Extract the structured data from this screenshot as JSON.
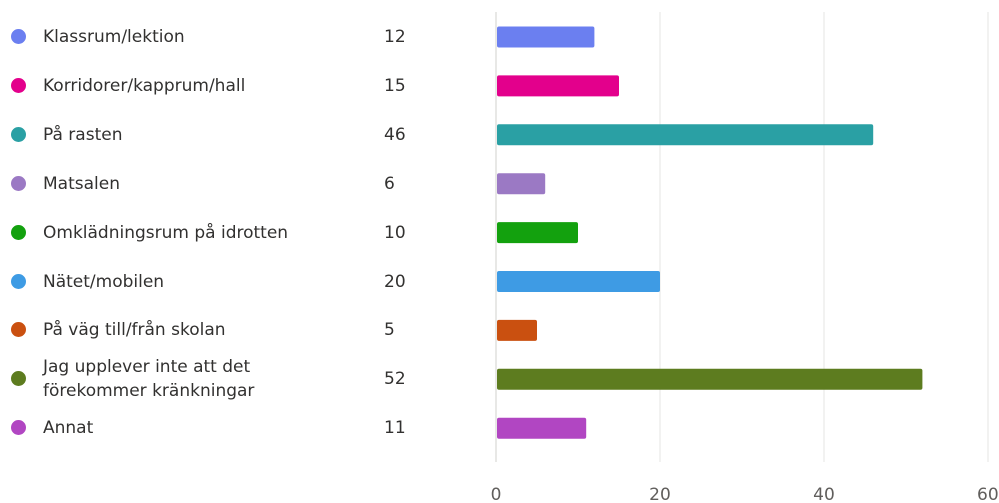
{
  "chart_data": {
    "type": "bar",
    "orientation": "horizontal",
    "categories": [
      "Klassrum/lektion",
      "Korridorer/kapprum/hall",
      "På rasten",
      "Matsalen",
      "Omklädningsrum på idrotten",
      "Nätet/mobilen",
      "På väg till/från skolan",
      "Jag upplever inte att det förekommer kränkningar",
      "Annat"
    ],
    "values": [
      12,
      15,
      46,
      6,
      10,
      20,
      5,
      52,
      11
    ],
    "colors": [
      "#6b7ff0",
      "#e3008c",
      "#2aa0a4",
      "#9b79c4",
      "#13a10e",
      "#3e9be4",
      "#ca5010",
      "#5d7c1f",
      "#b146c2"
    ],
    "xlim": [
      0,
      60
    ],
    "xticks": [
      0,
      20,
      40,
      60
    ],
    "grid": true,
    "legend": "left"
  }
}
